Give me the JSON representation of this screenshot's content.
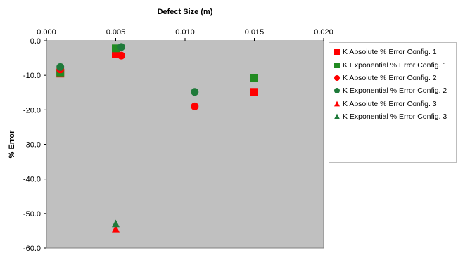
{
  "chart_data": {
    "type": "scatter",
    "title": "",
    "xlabel": "Defect Size (m)",
    "ylabel": "% Error",
    "xlim": [
      0.0,
      0.02
    ],
    "ylim": [
      -60.0,
      0.0
    ],
    "x_ticks": [
      "0.000",
      "0.005",
      "0.010",
      "0.015",
      "0.020"
    ],
    "y_ticks": [
      "0.0",
      "-10.0",
      "-20.0",
      "-30.0",
      "-40.0",
      "-50.0",
      "-60.0"
    ],
    "x_axis_position": "top",
    "grid": false,
    "plot_background": "#c0c0c0",
    "legend_position": "right",
    "series": [
      {
        "name": "K Absolute % Error Config. 1",
        "marker": "square",
        "color": "#ff0000",
        "points": [
          [
            0.001,
            -9.5
          ],
          [
            0.005,
            -3.8
          ],
          [
            0.015,
            -14.8
          ]
        ]
      },
      {
        "name": "K Exponential % Error Config. 1",
        "marker": "square",
        "color": "#228b22",
        "points": [
          [
            0.001,
            -9.2
          ],
          [
            0.005,
            -2.2
          ],
          [
            0.015,
            -10.7
          ]
        ]
      },
      {
        "name": "K Absolute % Error Config. 2",
        "marker": "circle",
        "color": "#ff0000",
        "points": [
          [
            0.001,
            -8.3
          ],
          [
            0.0054,
            -4.3
          ],
          [
            0.0107,
            -19.0
          ]
        ]
      },
      {
        "name": "K Exponential % Error Config. 2",
        "marker": "circle",
        "color": "#1f7a3a",
        "points": [
          [
            0.001,
            -7.6
          ],
          [
            0.0054,
            -1.8
          ],
          [
            0.0107,
            -14.8
          ]
        ]
      },
      {
        "name": "K Absolute % Error Config. 3",
        "marker": "triangle",
        "color": "#ff0000",
        "points": [
          [
            0.005,
            -54.5
          ]
        ]
      },
      {
        "name": "K Exponential % Error Config. 3",
        "marker": "triangle",
        "color": "#1f7a3a",
        "points": [
          [
            0.005,
            -53.0
          ]
        ]
      }
    ]
  }
}
